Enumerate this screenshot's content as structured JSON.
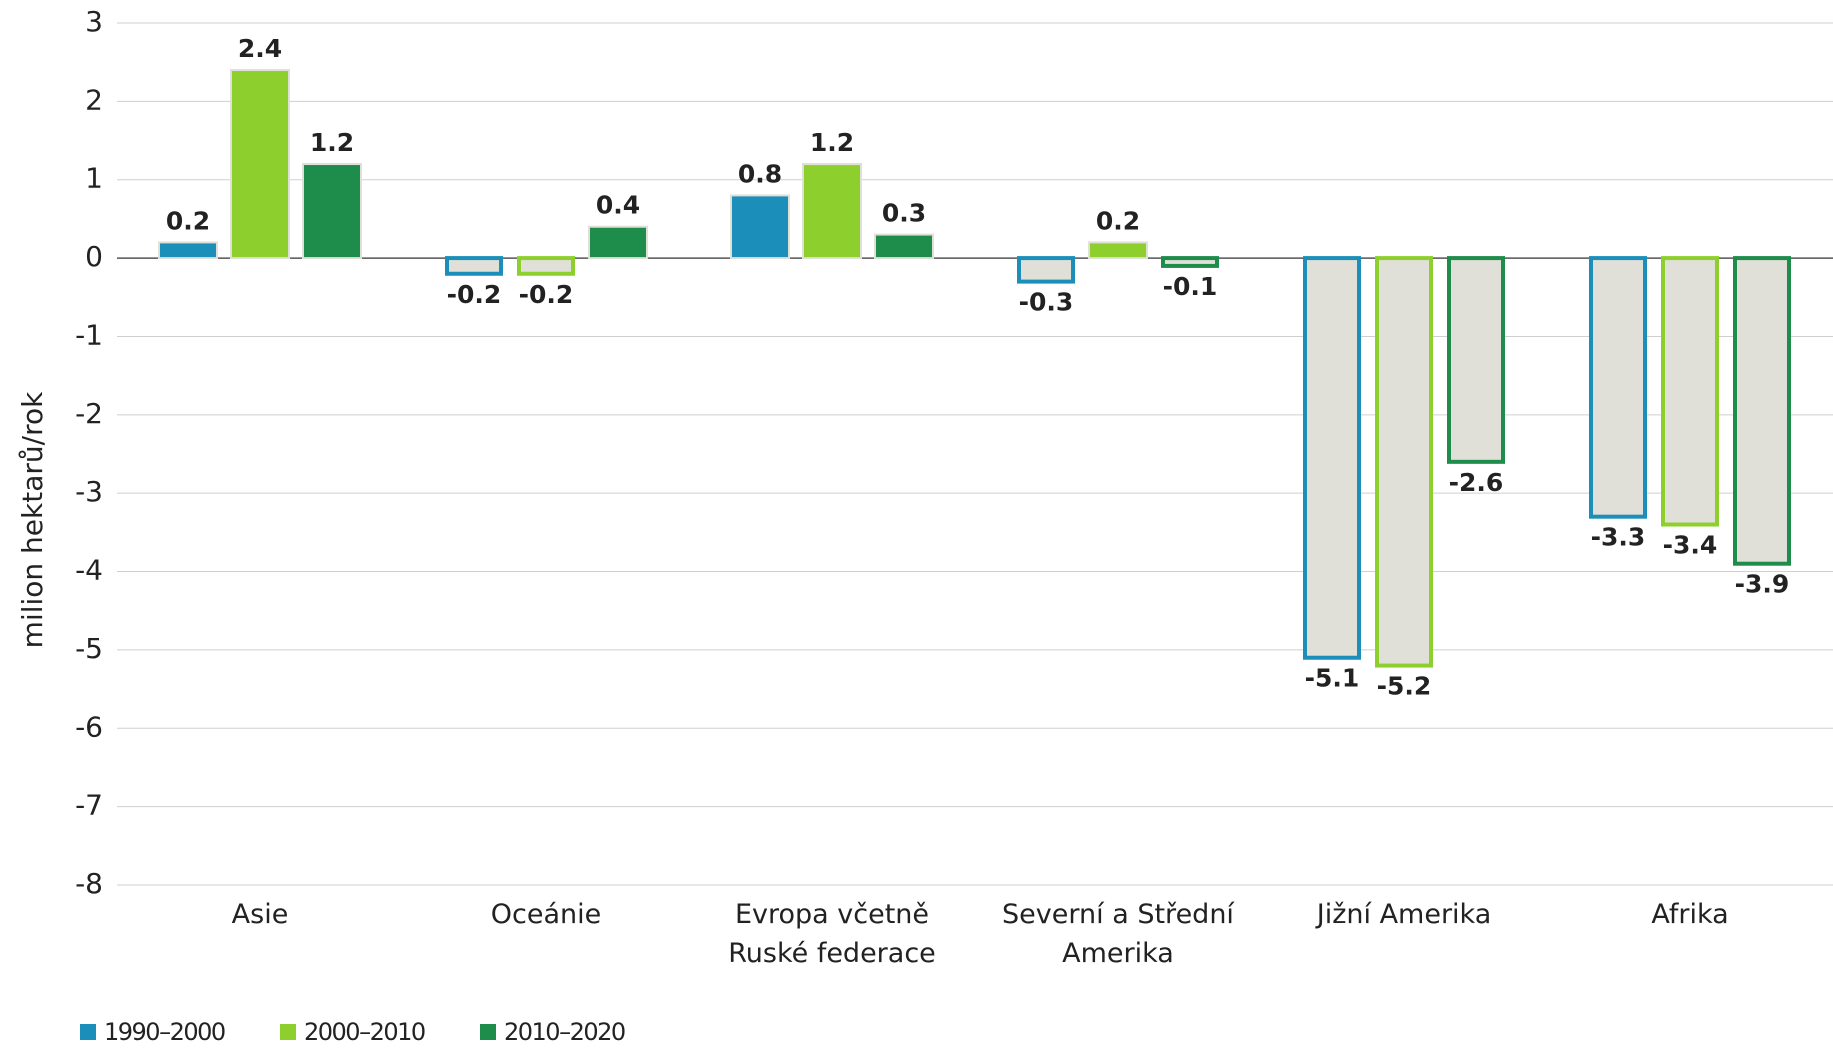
{
  "chart_data": {
    "type": "bar",
    "y_label": "milion hektarů/rok",
    "categories": [
      "Asie",
      "Oceánie",
      "Evropa včetně Ruské federace",
      "Severní a Střední Amerika",
      "Jižní Amerika",
      "Afrika"
    ],
    "series": [
      {
        "name": "1990–2000",
        "color": "#1b8fb9",
        "values": [
          0.2,
          -0.2,
          0.8,
          -0.3,
          -5.1,
          -3.3
        ]
      },
      {
        "name": "2000–2010",
        "color": "#8dd02e",
        "values": [
          2.4,
          -0.2,
          1.2,
          0.2,
          -5.2,
          -3.4
        ]
      },
      {
        "name": "2010–2020",
        "color": "#1e8c4b",
        "values": [
          1.2,
          0.4,
          0.3,
          -0.1,
          -2.6,
          -3.9
        ]
      }
    ],
    "ylim": [
      -8,
      3
    ],
    "yticks": [
      -8,
      -7,
      -6,
      -5,
      -4,
      -3,
      -2,
      -1,
      0,
      1,
      2,
      3
    ],
    "grid": true,
    "legend": "bottom-left"
  }
}
